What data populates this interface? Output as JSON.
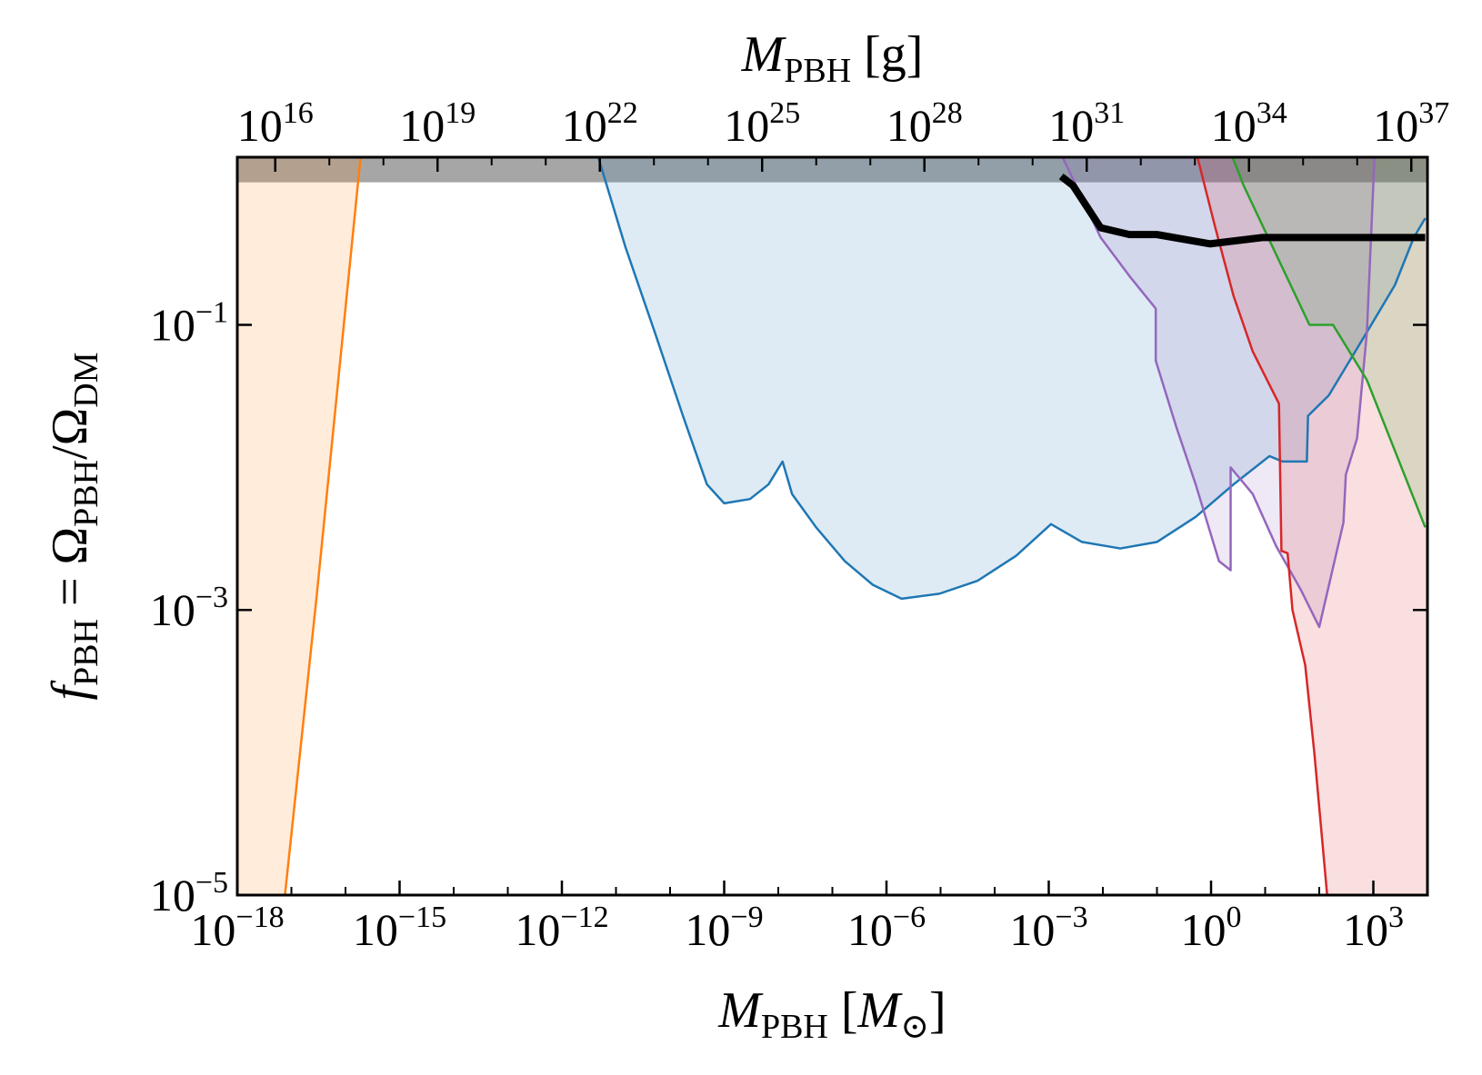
{
  "chart_data": {
    "type": "line",
    "top_axis_label": "MPBH [g]",
    "xlabel": "MPBH [M⊙]",
    "ylabel": "fPBH = ΩPBH/ΩDM",
    "xscale": "log",
    "yscale": "log",
    "xlim": [
      1e-18,
      10000.0
    ],
    "ylim": [
      1e-05,
      1.5
    ],
    "xticks": [
      {
        "value": 1e-18,
        "label": "10−18"
      },
      {
        "value": 1e-15,
        "label": "10−15"
      },
      {
        "value": 1e-12,
        "label": "10−12"
      },
      {
        "value": 1e-09,
        "label": "10−9"
      },
      {
        "value": 1e-06,
        "label": "10−6"
      },
      {
        "value": 0.001,
        "label": "10−3"
      },
      {
        "value": 1,
        "label": "100"
      },
      {
        "value": 1000.0,
        "label": "103"
      }
    ],
    "x_minor_ticks": [
      1e-17,
      1e-16,
      1e-14,
      1e-13,
      1e-11,
      1e-10,
      1e-08,
      1e-07,
      1e-05,
      0.0001,
      0.01,
      0.1,
      10,
      100
    ],
    "yticks": [
      {
        "value": 1e-05,
        "label": "10−5"
      },
      {
        "value": 0.001,
        "label": "10−3"
      },
      {
        "value": 0.1,
        "label": "10−1"
      }
    ],
    "x2lim": [
      1989000000000000.0,
      1.989e+37
    ],
    "x2ticks": [
      {
        "value": 1e+16,
        "label": "1016"
      },
      {
        "value": 1e+19,
        "label": "1019"
      },
      {
        "value": 1e+22,
        "label": "1022"
      },
      {
        "value": 1e+25,
        "label": "1025"
      },
      {
        "value": 1e+28,
        "label": "1028"
      },
      {
        "value": 1e+31,
        "label": "1031"
      },
      {
        "value": 1e+34,
        "label": "1034"
      },
      {
        "value": 1e+37,
        "label": "1037"
      }
    ],
    "x2_minor_ticks": [
      1e+17,
      1e+18,
      1e+20,
      1e+21,
      1e+23,
      1e+24,
      1e+26,
      1e+27,
      1e+29,
      1e+30,
      1e+32,
      1e+33,
      1e+35,
      1e+36
    ],
    "shaded_above": 1,
    "shade_color": "#808080",
    "series": [
      {
        "color": "#ff7f0e",
        "fill": "left",
        "linewidth": 2.5,
        "x": [
          7.6e-18,
          2.9e-17,
          1.9e-16
        ],
        "values": [
          1e-05,
          0.0012,
          1.5
        ]
      },
      {
        "color": "#1f77b4",
        "fill": "above",
        "linewidth": 2.5,
        "x": [
          4.7e-12,
          1.5e-11,
          5.2e-11,
          1.8e-10,
          4.8e-10,
          1e-09,
          3e-09,
          6.6e-09,
          1.2e-08,
          1.8e-08,
          5e-08,
          1.7e-07,
          5.6e-07,
          1.9e-06,
          9.5e-06,
          4.8e-05,
          0.00025,
          0.0011,
          0.0041,
          0.021,
          0.1,
          0.52,
          2.6,
          12,
          21,
          59,
          62,
          150,
          760,
          2500,
          5600,
          9100
        ],
        "values": [
          1.5,
          0.35,
          0.089,
          0.022,
          0.0076,
          0.0056,
          0.006,
          0.0076,
          0.011,
          0.0065,
          0.0038,
          0.0022,
          0.0015,
          0.0012,
          0.0013,
          0.0016,
          0.0024,
          0.004,
          0.003,
          0.0027,
          0.003,
          0.0045,
          0.0076,
          0.012,
          0.011,
          0.011,
          0.023,
          0.032,
          0.089,
          0.19,
          0.41,
          0.56
        ]
      },
      {
        "color": "#9467bd",
        "fill": "above",
        "linewidth": 2.5,
        "x": [
          0.0018,
          0.0091,
          0.031,
          0.095,
          0.095,
          0.23,
          0.52,
          1.4,
          2.3,
          2.3,
          5.9,
          16,
          45,
          100,
          280,
          310,
          500,
          760,
          1050
        ],
        "values": [
          1.5,
          0.41,
          0.22,
          0.13,
          0.056,
          0.019,
          0.0076,
          0.0022,
          0.0019,
          0.01,
          0.0065,
          0.0028,
          0.0014,
          0.00076,
          0.0041,
          0.0089,
          0.016,
          0.089,
          1.5
        ]
      },
      {
        "color": "#d62728",
        "fill": "right",
        "linewidth": 2.5,
        "x": [
          0.56,
          1.2,
          2.6,
          5.9,
          18,
          20,
          26,
          32,
          55,
          81,
          140
        ],
        "values": [
          1.5,
          0.48,
          0.16,
          0.065,
          0.028,
          0.0026,
          0.0025,
          0.001,
          0.00041,
          0.0001,
          1e-05
        ]
      },
      {
        "color": "#2ca02c",
        "fill": "above",
        "linewidth": 2.5,
        "x": [
          2.5,
          4.0,
          20,
          66,
          180,
          760,
          9100
        ],
        "values": [
          1.5,
          0.95,
          0.26,
          0.1,
          0.1,
          0.041,
          0.0038
        ]
      },
      {
        "color": "#000000",
        "fill": "none",
        "linewidth": 8,
        "x": [
          0.0017,
          0.0028,
          0.0091,
          0.031,
          0.1,
          0.95,
          8.9,
          9100
        ],
        "values": [
          1.1,
          0.95,
          0.48,
          0.43,
          0.43,
          0.37,
          0.41,
          0.41
        ]
      }
    ]
  }
}
